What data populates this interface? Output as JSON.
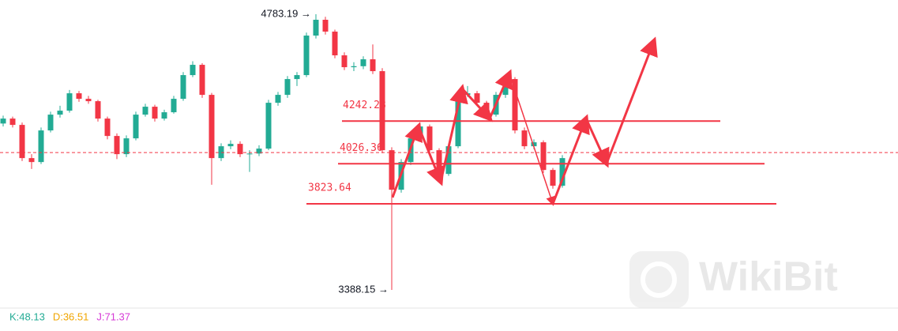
{
  "chart_data": {
    "type": "candlestick",
    "ohlc": [
      [
        4230,
        4270,
        4215,
        4255
      ],
      [
        4255,
        4265,
        4210,
        4223
      ],
      [
        4223,
        4235,
        4040,
        4055
      ],
      [
        4055,
        4075,
        4000,
        4035
      ],
      [
        4035,
        4210,
        4025,
        4195
      ],
      [
        4195,
        4290,
        4185,
        4275
      ],
      [
        4275,
        4320,
        4260,
        4295
      ],
      [
        4295,
        4400,
        4285,
        4383
      ],
      [
        4383,
        4395,
        4340,
        4355
      ],
      [
        4355,
        4370,
        4330,
        4343
      ],
      [
        4343,
        4350,
        4240,
        4255
      ],
      [
        4255,
        4265,
        4150,
        4167
      ],
      [
        4167,
        4180,
        4050,
        4075
      ],
      [
        4075,
        4170,
        4060,
        4155
      ],
      [
        4155,
        4290,
        4145,
        4275
      ],
      [
        4275,
        4330,
        4265,
        4315
      ],
      [
        4315,
        4325,
        4240,
        4255
      ],
      [
        4255,
        4300,
        4245,
        4287
      ],
      [
        4287,
        4370,
        4280,
        4355
      ],
      [
        4355,
        4490,
        4345,
        4475
      ],
      [
        4475,
        4545,
        4465,
        4527
      ],
      [
        4527,
        4535,
        4360,
        4375
      ],
      [
        4375,
        4385,
        3920,
        4055
      ],
      [
        4055,
        4130,
        4040,
        4115
      ],
      [
        4115,
        4145,
        4100,
        4127
      ],
      [
        4127,
        4140,
        4060,
        4075
      ],
      [
        4075,
        4095,
        3985,
        4078
      ],
      [
        4078,
        4120,
        4065,
        4103
      ],
      [
        4103,
        4350,
        4095,
        4335
      ],
      [
        4335,
        4390,
        4320,
        4375
      ],
      [
        4375,
        4470,
        4360,
        4455
      ],
      [
        4455,
        4490,
        4420,
        4475
      ],
      [
        4475,
        4690,
        4465,
        4675
      ],
      [
        4675,
        4783.19,
        4660,
        4755
      ],
      [
        4755,
        4770,
        4680,
        4695
      ],
      [
        4695,
        4705,
        4560,
        4575
      ],
      [
        4575,
        4590,
        4500,
        4515
      ],
      [
        4515,
        4540,
        4495,
        4520
      ],
      [
        4520,
        4570,
        4505,
        4555
      ],
      [
        4555,
        4630,
        4480,
        4495
      ],
      [
        4495,
        4510,
        4080,
        4095
      ],
      [
        4095,
        4110,
        3388.15,
        3895
      ],
      [
        3895,
        4050,
        3880,
        4035
      ],
      [
        4035,
        4170,
        4020,
        4155
      ],
      [
        4155,
        4230,
        4140,
        4215
      ],
      [
        4215,
        4225,
        4080,
        4095
      ],
      [
        4095,
        4105,
        3960,
        3975
      ],
      [
        3975,
        4130,
        3965,
        4115
      ],
      [
        4115,
        4390,
        4105,
        4375
      ],
      [
        4375,
        4420,
        4365,
        4383
      ],
      [
        4383,
        4395,
        4320,
        4335
      ],
      [
        4335,
        4345,
        4255,
        4275
      ],
      [
        4275,
        4390,
        4265,
        4375
      ],
      [
        4375,
        4470,
        4360,
        4455
      ],
      [
        4455,
        4465,
        4180,
        4195
      ],
      [
        4195,
        4210,
        4100,
        4115
      ],
      [
        4115,
        4150,
        4100,
        4135
      ],
      [
        4135,
        4145,
        3980,
        3995
      ],
      [
        3995,
        4005,
        3900,
        3915
      ],
      [
        3915,
        4070,
        3905,
        4055
      ]
    ],
    "up_color": "#22ab94",
    "down_color": "#f23645",
    "ylim": [
      3296,
      4855
    ],
    "high_label": "4783.19 →",
    "low_label": "3388.15 →",
    "levels": [
      4242.28,
      4026.36,
      3823.64
    ],
    "level_color": "#f23645",
    "price_line": 4083,
    "indicator_labels": [
      "K:48.13",
      "D:36.51",
      "J:71.37"
    ],
    "indicator_colors": [
      "#22ab94",
      "#f0a500",
      "#d63ad6"
    ],
    "watermark": "WikiBit"
  }
}
